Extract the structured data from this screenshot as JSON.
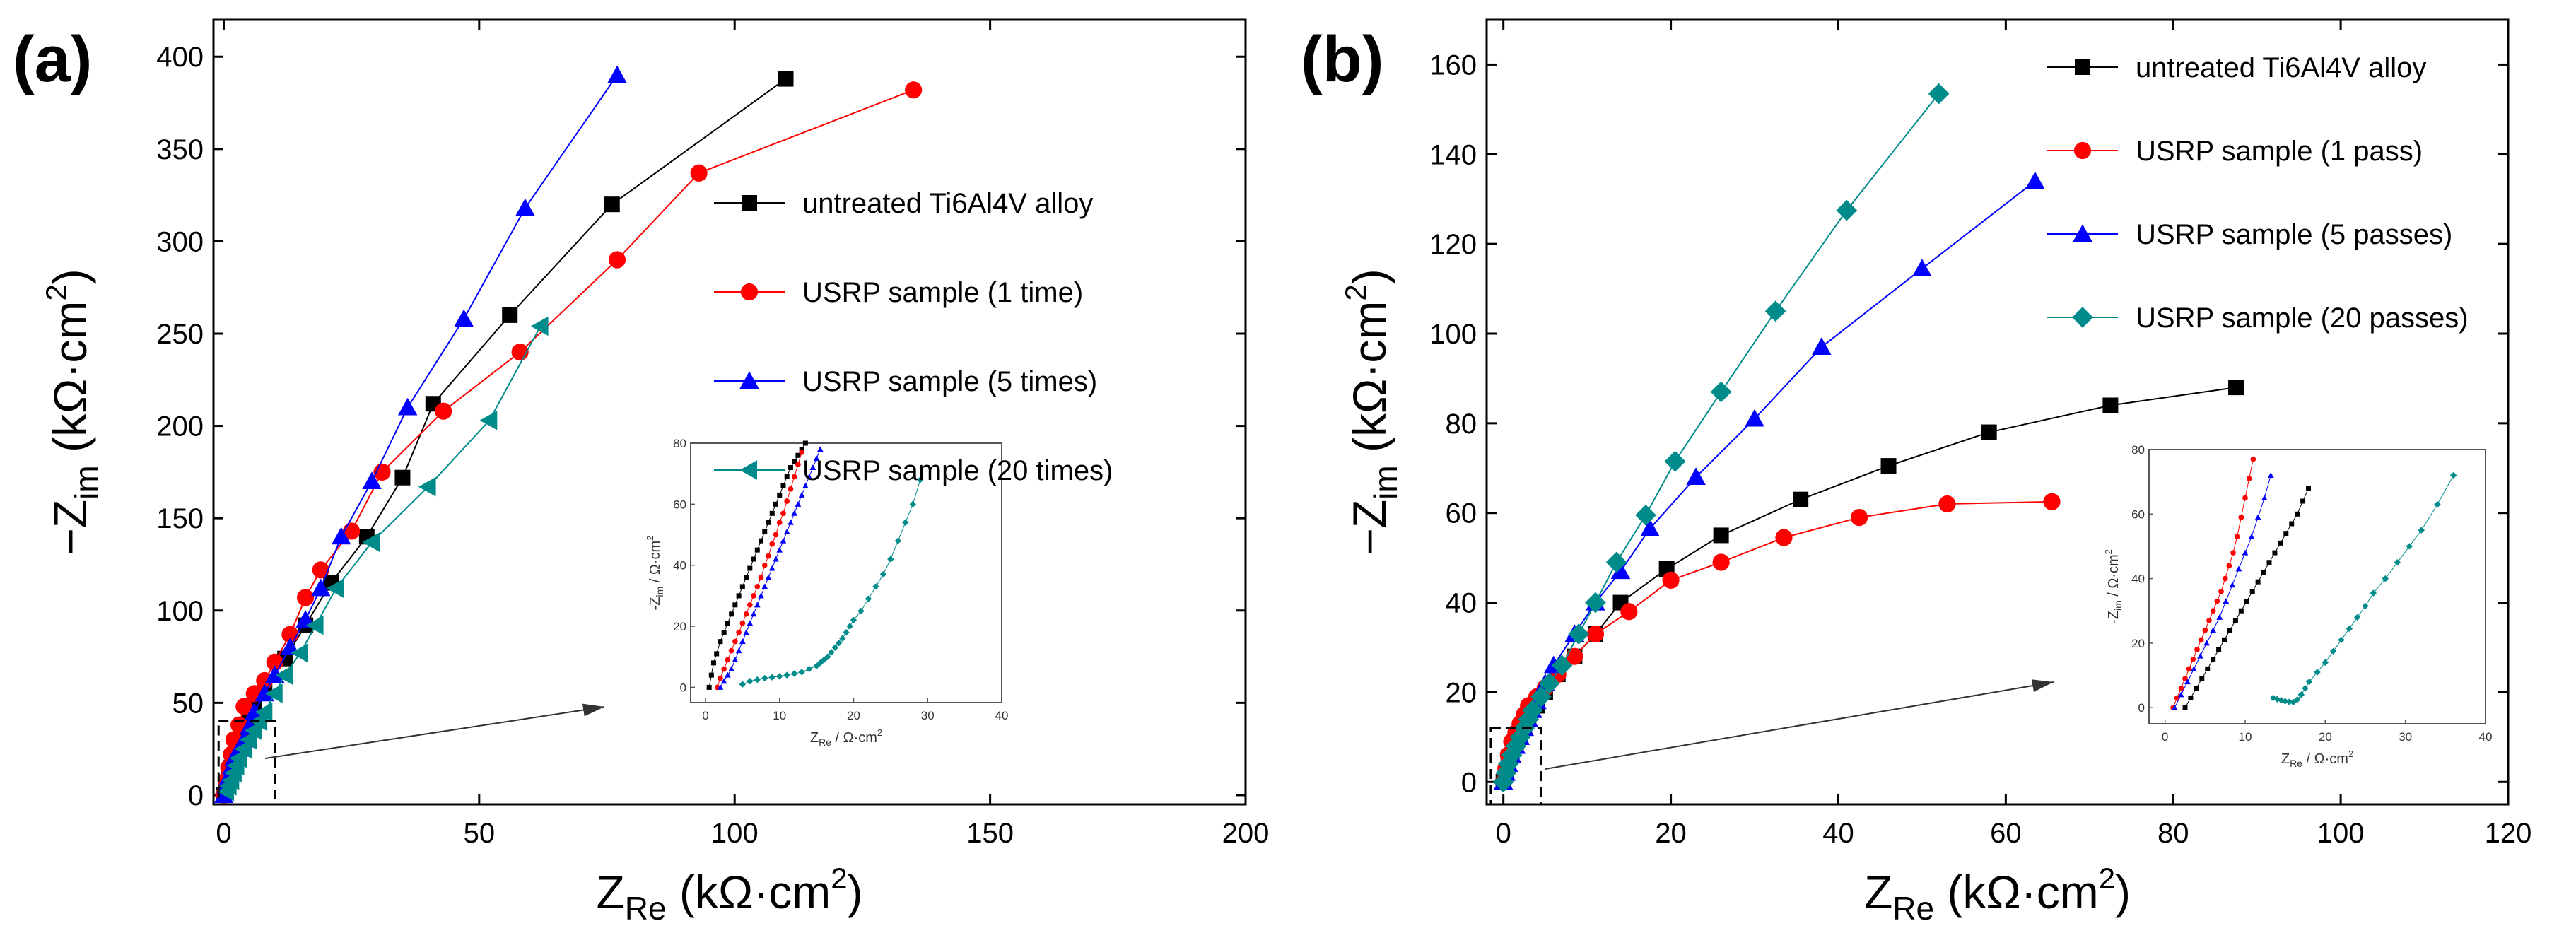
{
  "chart_data": [
    {
      "panel_label": "(a)",
      "type": "scatter",
      "xlabel_main": "Z",
      "xlabel_sub": "Re",
      "xlabel_unit": "(kΩ·cm",
      "ylabel_main": "−Z",
      "ylabel_sub": "im",
      "ylabel_unit": "(kΩ·cm",
      "unit_sup": "2",
      "unit_close": ")",
      "xlim": [
        -2,
        200
      ],
      "ylim": [
        -5,
        420
      ],
      "xticks": [
        0,
        50,
        100,
        150,
        200
      ],
      "yticks": [
        0,
        50,
        100,
        150,
        200,
        250,
        300,
        350,
        400
      ],
      "legend_position": "right",
      "series": [
        {
          "name": "untreated Ti6Al4V alloy",
          "marker": "square",
          "color": "#000000",
          "x": [
            0,
            0.5,
            1,
            1.5,
            2,
            3,
            4,
            5,
            6,
            8,
            12,
            16,
            21,
            28,
            35,
            41,
            56,
            76,
            110
          ],
          "y": [
            0,
            5,
            10,
            15,
            20,
            27,
            35,
            42,
            50,
            60,
            74,
            92,
            115,
            140,
            172,
            212,
            260,
            320,
            388
          ]
        },
        {
          "name": "USRP sample (1 time)",
          "marker": "circle",
          "color": "#ff0000",
          "x": [
            0,
            0.5,
            1,
            1.5,
            2,
            3,
            4,
            6,
            8,
            10,
            13,
            16,
            19,
            25,
            31,
            43,
            58,
            77,
            93,
            135
          ],
          "y": [
            0,
            8,
            15,
            22,
            30,
            38,
            48,
            55,
            62,
            72,
            87,
            107,
            122,
            143,
            175,
            208,
            240,
            290,
            337,
            382
          ]
        },
        {
          "name": "USRP sample (5 times)",
          "marker": "triangle-up",
          "color": "#0000ff",
          "x": [
            0,
            0.5,
            1,
            1.5,
            2,
            3,
            4,
            5,
            6,
            8,
            10,
            13,
            16,
            19,
            23,
            29,
            36,
            47,
            59,
            77
          ],
          "y": [
            0,
            5,
            10,
            15,
            20,
            25,
            30,
            37,
            45,
            55,
            65,
            80,
            95,
            112,
            140,
            170,
            210,
            258,
            318,
            390
          ]
        },
        {
          "name": "USRP sample (20 times)",
          "marker": "triangle-left",
          "color": "#008b8b",
          "x": [
            0.5,
            1,
            1.5,
            2,
            2.5,
            3,
            4,
            5,
            6,
            7,
            8,
            10,
            12,
            15,
            18,
            22,
            29,
            40,
            52,
            62
          ],
          "y": [
            2,
            5,
            8,
            12,
            16,
            20,
            25,
            30,
            35,
            40,
            45,
            55,
            65,
            77,
            92,
            112,
            137,
            167,
            203,
            254
          ]
        }
      ],
      "inset": {
        "xlabel_main": "Z",
        "xlabel_sub": "Re",
        "xlabel_unit": " / Ω·cm",
        "ylabel_main": "-Z",
        "ylabel_sub": "im",
        "ylabel_unit": " / Ω·cm",
        "unit_sup": "2",
        "xlim": [
          -2,
          40
        ],
        "ylim": [
          -5,
          80
        ],
        "xticks": [
          0,
          10,
          20,
          30,
          40
        ],
        "yticks": [
          0,
          20,
          40,
          60,
          80
        ],
        "series": [
          {
            "color": "#000000",
            "x": [
              0.5,
              0.8,
              1.1,
              1.5,
              2,
              2.5,
              3,
              3.5,
              4,
              4.5,
              5,
              5.5,
              6,
              6.5,
              7,
              7.5,
              8,
              8.5,
              9,
              9.5,
              10,
              10.5,
              11,
              11.5,
              12,
              12.5,
              13,
              13.5
            ],
            "y": [
              0,
              4,
              8,
              11,
              15,
              18,
              21,
              24,
              27,
              30,
              33,
              36,
              39,
              42,
              45,
              48,
              51,
              54,
              57,
              60,
              63,
              66,
              69,
              72,
              74,
              76,
              78,
              80
            ]
          },
          {
            "color": "#ff0000",
            "x": [
              1.6,
              2,
              2.5,
              3,
              3.5,
              4,
              4.5,
              5,
              5.5,
              6,
              6.5,
              7,
              7.5,
              8,
              8.5,
              9,
              9.5,
              10,
              10.5,
              11,
              11.5,
              12,
              12.5,
              13
            ],
            "y": [
              0,
              3,
              6,
              9,
              12,
              15,
              18,
              21,
              24,
              27,
              30,
              33,
              36,
              40,
              43,
              47,
              50,
              54,
              57,
              61,
              65,
              69,
              73,
              77
            ]
          },
          {
            "color": "#0000ff",
            "x": [
              2,
              2.5,
              3,
              3.5,
              4,
              4.5,
              5,
              5.5,
              6,
              6.5,
              7,
              7.5,
              8,
              8.5,
              9,
              9.5,
              10,
              10.5,
              11,
              11.5,
              12,
              12.5,
              13,
              13.5,
              14,
              14.5,
              15,
              15.5
            ],
            "y": [
              0,
              2,
              4,
              6,
              9,
              12,
              15,
              18,
              21,
              24,
              27,
              30,
              33,
              36,
              39,
              42,
              45,
              48,
              51,
              54,
              57,
              60,
              63,
              66,
              69,
              72,
              75,
              78
            ]
          },
          {
            "color": "#008b8b",
            "x": [
              5,
              6,
              7,
              8,
              9,
              10,
              11,
              12,
              13,
              14,
              15,
              15.5,
              16,
              16.5,
              17,
              17.5,
              18,
              18.5,
              19,
              19.5,
              20,
              21,
              22,
              23,
              24,
              25,
              26,
              27,
              28,
              29
            ],
            "y": [
              1,
              2,
              2.5,
              3,
              3.3,
              3.6,
              4,
              4.5,
              5,
              6,
              7,
              8,
              9,
              10,
              11.5,
              13,
              14.5,
              16,
              18,
              20,
              22,
              25,
              29,
              33,
              37,
              42,
              48,
              54,
              60,
              68
            ]
          }
        ]
      }
    },
    {
      "panel_label": "(b)",
      "type": "scatter",
      "xlabel_main": "Z",
      "xlabel_sub": "Re",
      "xlabel_unit": "(kΩ·cm",
      "ylabel_main": "−Z",
      "ylabel_sub": "im",
      "ylabel_unit": "(kΩ·cm",
      "unit_sup": "2",
      "unit_close": ")",
      "xlim": [
        -2,
        120
      ],
      "ylim": [
        -5,
        170
      ],
      "xticks": [
        0,
        20,
        40,
        60,
        80,
        100,
        120
      ],
      "yticks": [
        0,
        20,
        40,
        60,
        80,
        100,
        120,
        140,
        160
      ],
      "legend_position": "top-right",
      "series": [
        {
          "name": "untreated Ti6Al4V alloy",
          "marker": "square",
          "color": "#000000",
          "x": [
            0,
            0.3,
            0.6,
            1,
            1.5,
            2,
            2.5,
            3,
            4,
            5,
            6.5,
            8.5,
            11,
            14,
            19.5,
            26,
            35.5,
            46,
            58,
            72.5,
            87.5
          ],
          "y": [
            0,
            2,
            4,
            6,
            8,
            10,
            12,
            14,
            17,
            20,
            24,
            28,
            33,
            40,
            47.5,
            55,
            63,
            70.5,
            78,
            84,
            88
          ]
        },
        {
          "name": "USRP sample (1 pass)",
          "marker": "circle",
          "color": "#ff0000",
          "x": [
            0,
            0.3,
            0.6,
            1,
            1.5,
            2,
            2.5,
            3,
            4,
            5,
            6.5,
            8.5,
            11,
            15,
            20,
            26,
            33.5,
            42.5,
            53,
            65.5
          ],
          "y": [
            0,
            3,
            6,
            9,
            11,
            13,
            15,
            17,
            19,
            21,
            24,
            28,
            33,
            38,
            45,
            49,
            54.5,
            59,
            62,
            62.5
          ]
        },
        {
          "name": "USRP sample (5 passes)",
          "marker": "triangle-up",
          "color": "#0000ff",
          "x": [
            0,
            0.3,
            0.6,
            1,
            1.5,
            2,
            2.5,
            3,
            3.5,
            4,
            5,
            6,
            8.5,
            11,
            14,
            17.5,
            23,
            30,
            38,
            50,
            63.5
          ],
          "y": [
            0,
            2,
            4,
            6,
            8,
            10,
            12,
            14,
            16,
            18,
            22,
            26,
            33,
            40,
            47,
            56.5,
            68,
            81,
            97,
            114.5,
            134
          ]
        },
        {
          "name": "USRP sample (20 passes)",
          "marker": "diamond",
          "color": "#008b8b",
          "x": [
            0,
            0.3,
            0.6,
            1,
            1.5,
            2,
            2.5,
            3,
            3.5,
            4.5,
            5.5,
            7,
            9,
            11,
            13.5,
            17,
            20.5,
            26,
            32.5,
            41,
            52
          ],
          "y": [
            0,
            2,
            4,
            6,
            8,
            10,
            12,
            14,
            16,
            19,
            22,
            26,
            33,
            40,
            49,
            59.5,
            71.5,
            87,
            105,
            127.5,
            153.5
          ]
        }
      ],
      "inset": {
        "xlabel_main": "Z",
        "xlabel_sub": "Re",
        "xlabel_unit": " / Ω·cm",
        "ylabel_main": "-Z",
        "ylabel_sub": "im",
        "ylabel_unit": " / Ω·cm",
        "unit_sup": "2",
        "xlim": [
          -2,
          40
        ],
        "ylim": [
          -5,
          80
        ],
        "xticks": [
          0,
          10,
          20,
          30,
          40
        ],
        "yticks": [
          0,
          20,
          40,
          60,
          80
        ],
        "series": [
          {
            "color": "#ff0000",
            "x": [
              1,
              1.5,
              2,
              2.5,
              3,
              3.5,
              4,
              4.5,
              5,
              5.5,
              6,
              6.5,
              7,
              7.5,
              8,
              8.5,
              9,
              9.5,
              10,
              10.5,
              11
            ],
            "y": [
              0,
              3,
              6,
              9,
              12,
              15,
              18,
              21,
              24,
              27,
              30,
              33,
              36,
              40,
              44,
              48,
              53,
              59,
              65,
              71,
              77
            ]
          },
          {
            "color": "#0000ff",
            "x": [
              1.2,
              2,
              2.8,
              3.6,
              4.4,
              5.2,
              6,
              6.8,
              7.6,
              8.4,
              9.2,
              10,
              10.8,
              11.6,
              12.4,
              13.2
            ],
            "y": [
              0,
              4,
              8,
              12,
              16,
              20,
              24,
              28,
              33,
              38,
              43,
              48,
              53,
              59,
              65,
              72
            ]
          },
          {
            "color": "#000000",
            "x": [
              2.5,
              3.2,
              3.9,
              4.6,
              5.3,
              6,
              6.7,
              7.4,
              8.1,
              8.8,
              9.5,
              10.2,
              10.9,
              11.6,
              12.3,
              13,
              13.7,
              14.4,
              15.1,
              15.8,
              16.5,
              17.2,
              17.9
            ],
            "y": [
              0,
              3,
              6,
              9,
              12,
              15,
              18,
              21,
              24,
              27,
              30,
              33,
              36,
              39,
              42,
              45,
              48,
              51,
              54,
              57,
              60,
              64,
              68
            ]
          },
          {
            "color": "#008b8b",
            "x": [
              13.5,
              14,
              14.5,
              15,
              15.5,
              16,
              16.5,
              17,
              17.5,
              18,
              19,
              20,
              21,
              22,
              23,
              24,
              25,
              26,
              27.5,
              29,
              30.5,
              32,
              34,
              36
            ],
            "y": [
              3,
              2.6,
              2.3,
              2,
              1.8,
              1.7,
              2.5,
              4,
              6,
              8,
              11,
              14,
              17.5,
              21,
              24.5,
              28,
              31.5,
              35.5,
              40,
              45,
              50,
              55,
              63,
              72
            ]
          }
        ]
      }
    }
  ]
}
